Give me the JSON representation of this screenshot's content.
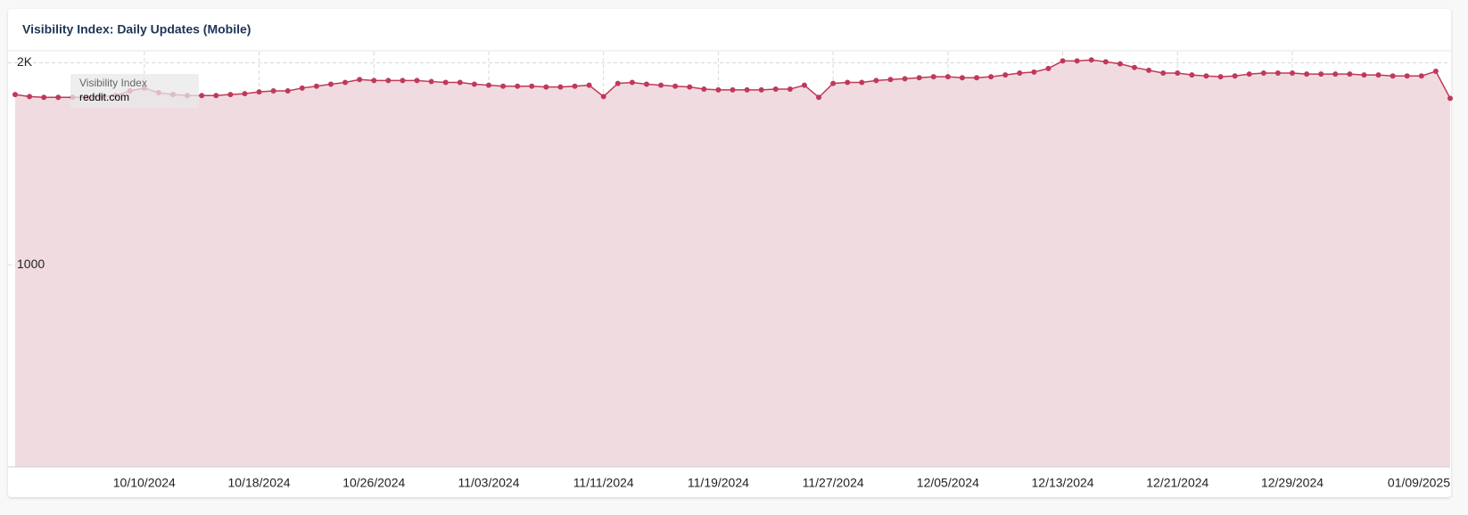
{
  "chart_data": {
    "type": "line",
    "title": "Visibility Index: Daily Updates (Mobile)",
    "tooltip_title": "Visibility Index",
    "categories": [
      null,
      null,
      null,
      null,
      null,
      null,
      null,
      null,
      null,
      "10/10/2024",
      null,
      null,
      null,
      null,
      null,
      null,
      null,
      "10/18/2024",
      null,
      null,
      null,
      null,
      null,
      null,
      null,
      "10/26/2024",
      null,
      null,
      null,
      null,
      null,
      null,
      null,
      "11/03/2024",
      null,
      null,
      null,
      null,
      null,
      null,
      null,
      "11/11/2024",
      null,
      null,
      null,
      null,
      null,
      null,
      null,
      "11/19/2024",
      null,
      null,
      null,
      null,
      null,
      null,
      null,
      "11/27/2024",
      null,
      null,
      null,
      null,
      null,
      null,
      null,
      "12/05/2024",
      null,
      null,
      null,
      null,
      null,
      null,
      null,
      "12/13/2024",
      null,
      null,
      null,
      null,
      null,
      null,
      null,
      "12/21/2024",
      null,
      null,
      null,
      null,
      null,
      null,
      null,
      "12/29/2024",
      null,
      null,
      null,
      null,
      null,
      null,
      null,
      null,
      null,
      null,
      "01/09/2025"
    ],
    "series": [
      {
        "name": "reddit.com",
        "color": "#c0395a",
        "fill": "#f0dce0",
        "values": [
          1843,
          1833,
          1829,
          1829,
          1829,
          1829,
          1833,
          1838,
          1861,
          1875,
          1852,
          1843,
          1838,
          1838,
          1838,
          1843,
          1847,
          1856,
          1861,
          1861,
          1875,
          1884,
          1894,
          1903,
          1917,
          1912,
          1912,
          1912,
          1912,
          1907,
          1903,
          1903,
          1894,
          1889,
          1884,
          1884,
          1884,
          1880,
          1880,
          1884,
          1889,
          1833,
          1898,
          1903,
          1894,
          1889,
          1884,
          1880,
          1870,
          1866,
          1866,
          1866,
          1866,
          1870,
          1870,
          1889,
          1829,
          1898,
          1903,
          1903,
          1912,
          1917,
          1921,
          1926,
          1931,
          1931,
          1926,
          1926,
          1931,
          1940,
          1949,
          1954,
          1972,
          2009,
          2009,
          2014,
          2005,
          1995,
          1977,
          1963,
          1949,
          1949,
          1940,
          1935,
          1931,
          1935,
          1944,
          1949,
          1949,
          1949,
          1944,
          1944,
          1944,
          1944,
          1940,
          1940,
          1935,
          1935,
          1935,
          1958,
          1824
        ]
      }
    ],
    "ylim": [
      0,
      2055
    ],
    "yticks": [
      1000,
      {
        "value": 2000,
        "label": "2K"
      }
    ],
    "grid": true
  }
}
